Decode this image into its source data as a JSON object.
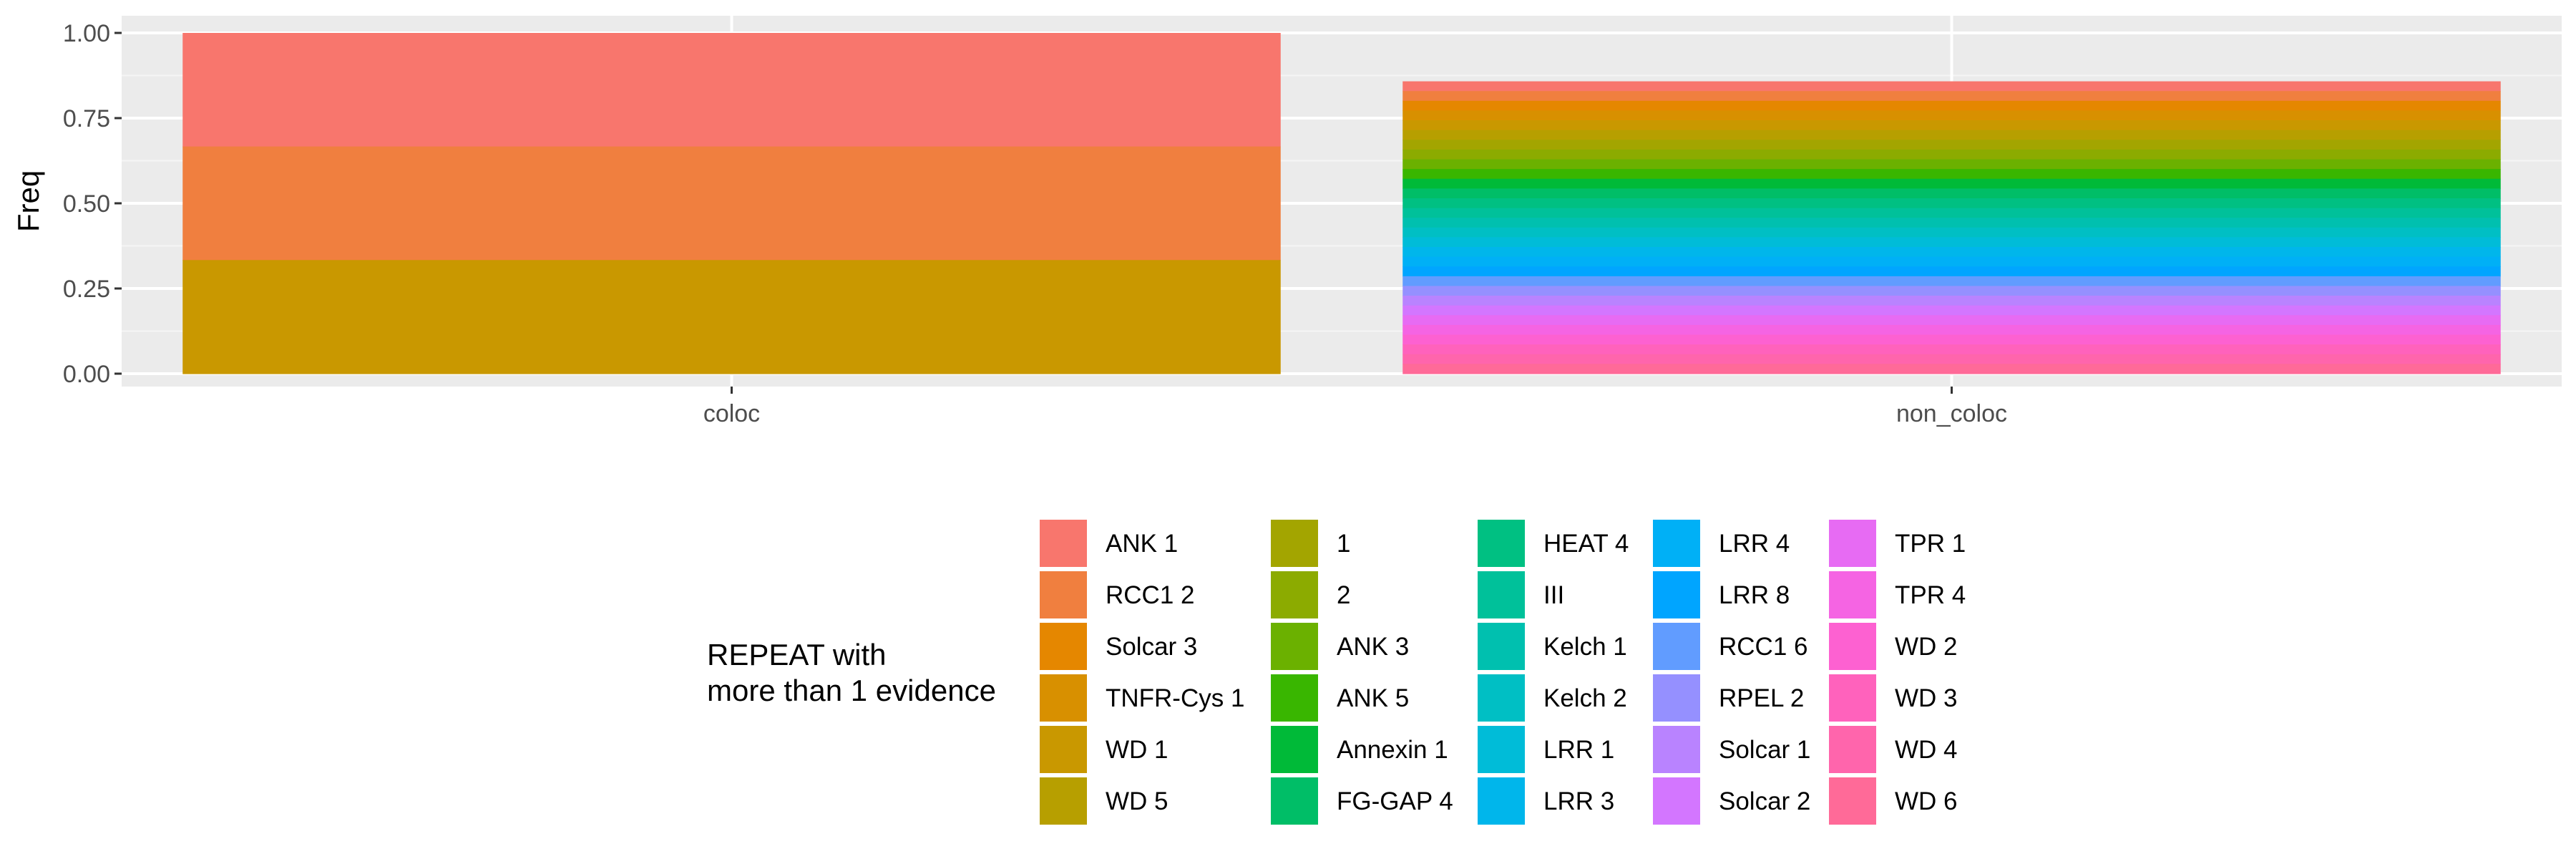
{
  "chart_data": {
    "type": "bar",
    "stacked": true,
    "categories": [
      "coloc",
      "non_coloc"
    ],
    "ylabel": "Freq",
    "xlabel": "",
    "ylim": [
      0,
      1.0
    ],
    "yticks": [
      "0.00",
      "0.25",
      "0.50",
      "0.75",
      "1.00"
    ],
    "ytick_values": [
      0,
      0.25,
      0.5,
      0.75,
      1.0
    ],
    "grid": true,
    "legend_position": "bottom",
    "legend_title": [
      "REPEAT with",
      "more than 1 evidence"
    ],
    "series": [
      {
        "name": "ANK 1",
        "color": "#F8766D",
        "values": [
          0.3333,
          0.0286
        ]
      },
      {
        "name": "RCC1 2",
        "color": "#F07F3F",
        "values": [
          0.3333,
          0.0286
        ]
      },
      {
        "name": "Solcar 3",
        "color": "#E58700",
        "values": [
          0.0,
          0.0286
        ]
      },
      {
        "name": "TNFR-Cys 1",
        "color": "#D89000",
        "values": [
          0.0,
          0.0286
        ]
      },
      {
        "name": "WD 1",
        "color": "#C99800",
        "values": [
          0.3334,
          0.0286
        ]
      },
      {
        "name": "WD 5",
        "color": "#B79F00",
        "values": [
          0.0,
          0.0286
        ]
      },
      {
        "name": "1",
        "color": "#A3A500",
        "values": [
          0.0,
          0.0286
        ]
      },
      {
        "name": "2",
        "color": "#8CAB00",
        "values": [
          0.0,
          0.0286
        ]
      },
      {
        "name": "ANK 3",
        "color": "#6BB100",
        "values": [
          0.0,
          0.0286
        ]
      },
      {
        "name": "ANK 5",
        "color": "#39B600",
        "values": [
          0.0,
          0.0286
        ]
      },
      {
        "name": "Annexin 1",
        "color": "#00BA38",
        "values": [
          0.0,
          0.0286
        ]
      },
      {
        "name": "FG-GAP 4",
        "color": "#00BE67",
        "values": [
          0.0,
          0.0286
        ]
      },
      {
        "name": "HEAT 4",
        "color": "#00C082",
        "values": [
          0.0,
          0.0286
        ]
      },
      {
        "name": "III",
        "color": "#00C19A",
        "values": [
          0.0,
          0.0286
        ]
      },
      {
        "name": "Kelch 1",
        "color": "#00C0AF",
        "values": [
          0.0,
          0.0286
        ]
      },
      {
        "name": "Kelch 2",
        "color": "#00BFC4",
        "values": [
          0.0,
          0.0286
        ]
      },
      {
        "name": "LRR 1",
        "color": "#00BCD8",
        "values": [
          0.0,
          0.0286
        ]
      },
      {
        "name": "LRR 3",
        "color": "#00B6EB",
        "values": [
          0.0,
          0.0286
        ]
      },
      {
        "name": "LRR 4",
        "color": "#00B0F6",
        "values": [
          0.0,
          0.0286
        ]
      },
      {
        "name": "LRR 8",
        "color": "#00A5FF",
        "values": [
          0.0,
          0.0286
        ]
      },
      {
        "name": "RCC1 6",
        "color": "#619CFF",
        "values": [
          0.0,
          0.0286
        ]
      },
      {
        "name": "RPEL 2",
        "color": "#9590FF",
        "values": [
          0.0,
          0.0286
        ]
      },
      {
        "name": "Solcar 1",
        "color": "#B983FF",
        "values": [
          0.0,
          0.0286
        ]
      },
      {
        "name": "Solcar 2",
        "color": "#D376FF",
        "values": [
          0.0,
          0.0286
        ]
      },
      {
        "name": "TPR 1",
        "color": "#E76BF3",
        "values": [
          0.0,
          0.0286
        ]
      },
      {
        "name": "TPR 4",
        "color": "#F564E3",
        "values": [
          0.0,
          0.0286
        ]
      },
      {
        "name": "WD 2",
        "color": "#FD61D1",
        "values": [
          0.0,
          0.0286
        ]
      },
      {
        "name": "WD 3",
        "color": "#FF62BC",
        "values": [
          0.0,
          0.0286
        ]
      },
      {
        "name": "WD 4",
        "color": "#FF65AC",
        "values": [
          0.0,
          0.0286
        ]
      },
      {
        "name": "WD 6",
        "color": "#FF6A98",
        "values": [
          0.0,
          0.0286
        ]
      }
    ]
  }
}
